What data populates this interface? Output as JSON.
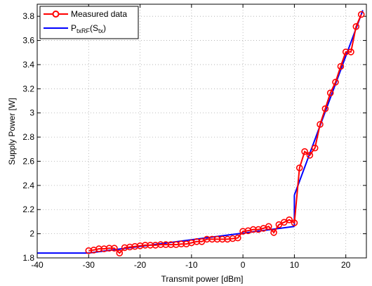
{
  "chart_data": {
    "type": "line",
    "title": "",
    "xlabel": "Transmit power [dBm]",
    "ylabel": "Supply Power [W]",
    "xlim": [
      -40,
      24
    ],
    "ylim": [
      1.8,
      3.9
    ],
    "xticks": [
      -40,
      -30,
      -20,
      -10,
      0,
      10,
      20
    ],
    "yticks": [
      1.8,
      2,
      2.2,
      2.4,
      2.6,
      2.8,
      3,
      3.2,
      3.4,
      3.6,
      3.8
    ],
    "grid": true,
    "legend_position": "top-left",
    "series": [
      {
        "name": "Measured data",
        "style": "line-with-circle-markers",
        "color": "#ff0000",
        "x": [
          -30,
          -29,
          -28,
          -27,
          -26,
          -25,
          -24,
          -23,
          -22,
          -21,
          -20,
          -19,
          -18,
          -17,
          -16,
          -15,
          -14,
          -13,
          -12,
          -11,
          -10,
          -9,
          -8,
          -7,
          -6,
          -5,
          -4,
          -3,
          -2,
          -1,
          0,
          1,
          2,
          3,
          4,
          5,
          6,
          7,
          8,
          9,
          10,
          11,
          12,
          13,
          14,
          15,
          16,
          17,
          18,
          19,
          20,
          21,
          22,
          23
        ],
        "y": [
          1.86,
          1.865,
          1.875,
          1.875,
          1.88,
          1.88,
          1.84,
          1.885,
          1.89,
          1.895,
          1.9,
          1.905,
          1.905,
          1.905,
          1.91,
          1.91,
          1.91,
          1.91,
          1.915,
          1.915,
          1.925,
          1.935,
          1.935,
          1.955,
          1.955,
          1.955,
          1.955,
          1.955,
          1.96,
          1.965,
          2.02,
          2.025,
          2.035,
          2.035,
          2.045,
          2.06,
          2.01,
          2.075,
          2.095,
          2.115,
          2.09,
          2.545,
          2.68,
          2.65,
          2.71,
          2.905,
          3.035,
          3.165,
          3.255,
          3.385,
          3.505,
          3.505,
          3.715,
          3.815
        ]
      },
      {
        "name_parts": [
          "P",
          "txRF",
          "(S",
          "tx",
          ")"
        ],
        "style": "piecewise-linear-model",
        "color": "#0000ff",
        "segments": [
          {
            "x": [
              -40,
              -30
            ],
            "y": [
              1.84,
              1.84
            ]
          },
          {
            "x": [
              -30,
              10
            ],
            "y": [
              1.84,
              2.06
            ]
          },
          {
            "x": [
              10,
              10
            ],
            "y": [
              2.06,
              2.32
            ]
          },
          {
            "x": [
              10,
              23.3
            ],
            "y": [
              2.32,
              3.85
            ]
          }
        ]
      }
    ]
  }
}
